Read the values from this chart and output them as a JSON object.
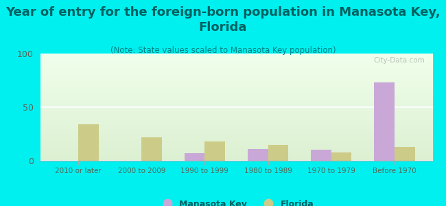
{
  "title": "Year of entry for the foreign-born population in Manasota Key,\nFlorida",
  "subtitle": "(Note: State values scaled to Manasota Key population)",
  "categories": [
    "2010 or later",
    "2000 to 2009",
    "1990 to 1999",
    "1980 to 1989",
    "1970 to 1979",
    "Before 1970"
  ],
  "manasota_values": [
    0,
    0,
    7,
    11,
    10,
    73
  ],
  "florida_values": [
    34,
    22,
    18,
    15,
    8,
    13
  ],
  "manasota_color": "#c9a8d8",
  "florida_color": "#cccc88",
  "background_color": "#00f0f0",
  "title_color": "#006060",
  "subtitle_color": "#008080",
  "tick_color": "#556655",
  "ylim": [
    0,
    100
  ],
  "yticks": [
    0,
    50,
    100
  ],
  "title_fontsize": 13,
  "subtitle_fontsize": 8.5,
  "watermark": "City-Data.com",
  "bar_width": 0.32
}
